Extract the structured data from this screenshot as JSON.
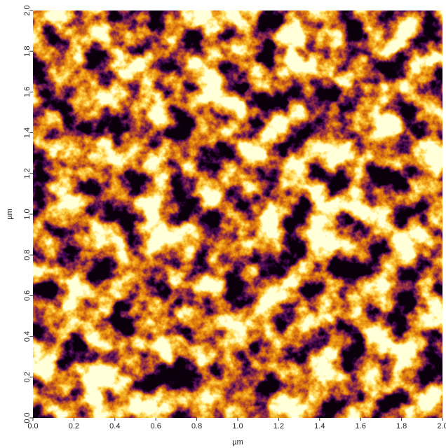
{
  "chart_data": {
    "type": "image",
    "xlabel": "µm",
    "ylabel": "µm",
    "xlim": [
      0,
      2
    ],
    "ylim": [
      0,
      2
    ],
    "xticks": [
      {
        "value": 0,
        "label": "0.0"
      },
      {
        "value": 0.2,
        "label": "0.2"
      },
      {
        "value": 0.4,
        "label": "0.4"
      },
      {
        "value": 0.6,
        "label": "0.6"
      },
      {
        "value": 0.8,
        "label": "0.8"
      },
      {
        "value": 1.0,
        "label": "1.0"
      },
      {
        "value": 1.2,
        "label": "1.2"
      },
      {
        "value": 1.4,
        "label": "1.4"
      },
      {
        "value": 1.6,
        "label": "1.6"
      },
      {
        "value": 1.8,
        "label": "1.8"
      },
      {
        "value": 2.0,
        "label": "2.0"
      }
    ],
    "yticks": [
      {
        "value": 0,
        "label": "0.0"
      },
      {
        "value": 0.2,
        "label": "0.2"
      },
      {
        "value": 0.4,
        "label": "0.4"
      },
      {
        "value": 0.6,
        "label": "0.6"
      },
      {
        "value": 0.8,
        "label": "0.8"
      },
      {
        "value": 1.0,
        "label": "1.0"
      },
      {
        "value": 1.2,
        "label": "1.2"
      },
      {
        "value": 1.4,
        "label": "1.4"
      },
      {
        "value": 1.6,
        "label": "1.6"
      },
      {
        "value": 1.8,
        "label": "1.8"
      },
      {
        "value": 2.0,
        "label": "2.0"
      }
    ]
  }
}
